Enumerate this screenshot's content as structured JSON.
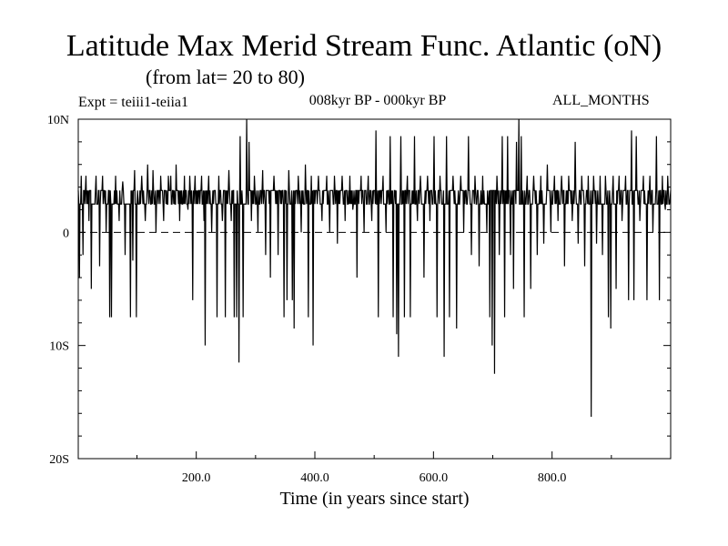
{
  "header": {
    "title": "Latitude Max Merid Stream Func. Atlantic (oN)",
    "subtitle": "(from lat= 20 to 80)",
    "expt": "Expt = teiii1-teiia1",
    "period": "008kyr BP - 000kyr BP",
    "months": "ALL_MONTHS"
  },
  "chart_data": {
    "type": "line",
    "title": "Latitude Max Merid Stream Func. Atlantic (oN)",
    "subtitle": "(from lat= 20 to 80)",
    "xlabel": "Time (in years since start)",
    "ylabel": "",
    "xlim": [
      1,
      1000
    ],
    "ylim": [
      -20,
      10
    ],
    "x_ticks": [
      200,
      400,
      600,
      800
    ],
    "x_tick_labels": [
      "200.0",
      "400.0",
      "600.0",
      "800.0"
    ],
    "y_ticks": [
      10,
      0,
      -10,
      -20
    ],
    "y_tick_labels": [
      "10N",
      "0",
      "10S",
      "20S"
    ],
    "zero_line": "dashed",
    "grid": false,
    "series": [
      {
        "color": "#000000",
        "baseline": [
          2.5,
          3.7
        ],
        "spikes": [
          {
            "x": 3,
            "y": -4
          },
          {
            "x": 6,
            "y": 5
          },
          {
            "x": 9,
            "y": -2
          },
          {
            "x": 14,
            "y": 5
          },
          {
            "x": 19,
            "y": 1
          },
          {
            "x": 23,
            "y": -5
          },
          {
            "x": 31,
            "y": 5
          },
          {
            "x": 37,
            "y": -3
          },
          {
            "x": 42,
            "y": 5
          },
          {
            "x": 48,
            "y": 0
          },
          {
            "x": 54,
            "y": -7.5
          },
          {
            "x": 57,
            "y": -7.5
          },
          {
            "x": 64,
            "y": 5
          },
          {
            "x": 70,
            "y": 1
          },
          {
            "x": 76,
            "y": 4.5
          },
          {
            "x": 80,
            "y": -2
          },
          {
            "x": 89,
            "y": -7.5
          },
          {
            "x": 93,
            "y": -2.5
          },
          {
            "x": 96,
            "y": 5.5
          },
          {
            "x": 99,
            "y": -7.5
          },
          {
            "x": 108,
            "y": 5
          },
          {
            "x": 114,
            "y": 1
          },
          {
            "x": 118,
            "y": 6
          },
          {
            "x": 127,
            "y": 5.5
          },
          {
            "x": 132,
            "y": 0
          },
          {
            "x": 140,
            "y": 5
          },
          {
            "x": 145,
            "y": 1
          },
          {
            "x": 153,
            "y": 5
          },
          {
            "x": 157,
            "y": 5
          },
          {
            "x": 166,
            "y": 6
          },
          {
            "x": 172,
            "y": 1
          },
          {
            "x": 180,
            "y": 5
          },
          {
            "x": 186,
            "y": 2
          },
          {
            "x": 189,
            "y": 5
          },
          {
            "x": 194,
            "y": -6
          },
          {
            "x": 198,
            "y": 5
          },
          {
            "x": 209,
            "y": 5
          },
          {
            "x": 213,
            "y": 1
          },
          {
            "x": 215,
            "y": -10
          },
          {
            "x": 221,
            "y": 5
          },
          {
            "x": 226,
            "y": 0
          },
          {
            "x": 235,
            "y": -7.5
          },
          {
            "x": 238,
            "y": 5
          },
          {
            "x": 244,
            "y": 1
          },
          {
            "x": 249,
            "y": -7.5
          },
          {
            "x": 255,
            "y": 5.5
          },
          {
            "x": 259,
            "y": 1
          },
          {
            "x": 264,
            "y": -7.5
          },
          {
            "x": 268,
            "y": -7.5
          },
          {
            "x": 272,
            "y": -11.5
          },
          {
            "x": 274,
            "y": 8.5
          },
          {
            "x": 279,
            "y": -7.5
          },
          {
            "x": 285,
            "y": 10
          },
          {
            "x": 289,
            "y": 8
          },
          {
            "x": 293,
            "y": 1
          },
          {
            "x": 298,
            "y": 5
          },
          {
            "x": 304,
            "y": 0
          },
          {
            "x": 312,
            "y": 5.5
          },
          {
            "x": 317,
            "y": -2
          },
          {
            "x": 325,
            "y": -4
          },
          {
            "x": 331,
            "y": 5
          },
          {
            "x": 338,
            "y": -2
          },
          {
            "x": 348,
            "y": -7.5
          },
          {
            "x": 353,
            "y": -6
          },
          {
            "x": 356,
            "y": 5.5
          },
          {
            "x": 362,
            "y": -6
          },
          {
            "x": 365,
            "y": -8.5
          },
          {
            "x": 372,
            "y": 5
          },
          {
            "x": 377,
            "y": 0
          },
          {
            "x": 384,
            "y": 6
          },
          {
            "x": 389,
            "y": -7.5
          },
          {
            "x": 394,
            "y": 5
          },
          {
            "x": 397,
            "y": -10
          },
          {
            "x": 406,
            "y": 5
          },
          {
            "x": 412,
            "y": 1
          },
          {
            "x": 420,
            "y": 5
          },
          {
            "x": 425,
            "y": 0
          },
          {
            "x": 433,
            "y": 5
          },
          {
            "x": 438,
            "y": -1
          },
          {
            "x": 446,
            "y": 5
          },
          {
            "x": 451,
            "y": 1
          },
          {
            "x": 459,
            "y": 5
          },
          {
            "x": 464,
            "y": 2
          },
          {
            "x": 471,
            "y": -4
          },
          {
            "x": 478,
            "y": 5
          },
          {
            "x": 483,
            "y": 0
          },
          {
            "x": 490,
            "y": 5
          },
          {
            "x": 496,
            "y": 1
          },
          {
            "x": 503,
            "y": 9
          },
          {
            "x": 507,
            "y": -7.5
          },
          {
            "x": 515,
            "y": 5
          },
          {
            "x": 520,
            "y": 0
          },
          {
            "x": 527,
            "y": 8.5
          },
          {
            "x": 532,
            "y": -7.5
          },
          {
            "x": 538,
            "y": -9
          },
          {
            "x": 541,
            "y": -11
          },
          {
            "x": 545,
            "y": 8.5
          },
          {
            "x": 551,
            "y": -7.5
          },
          {
            "x": 556,
            "y": 5
          },
          {
            "x": 561,
            "y": -7.5
          },
          {
            "x": 568,
            "y": 8.5
          },
          {
            "x": 573,
            "y": 1
          },
          {
            "x": 578,
            "y": 5
          },
          {
            "x": 584,
            "y": -4
          },
          {
            "x": 590,
            "y": 5
          },
          {
            "x": 594,
            "y": 1
          },
          {
            "x": 601,
            "y": 8.5
          },
          {
            "x": 606,
            "y": -7.5
          },
          {
            "x": 611,
            "y": 5
          },
          {
            "x": 618,
            "y": -11
          },
          {
            "x": 622,
            "y": 8.5
          },
          {
            "x": 627,
            "y": -7.5
          },
          {
            "x": 633,
            "y": 5
          },
          {
            "x": 639,
            "y": -8.5
          },
          {
            "x": 646,
            "y": 5
          },
          {
            "x": 651,
            "y": 0
          },
          {
            "x": 659,
            "y": 8.5
          },
          {
            "x": 664,
            "y": -2
          },
          {
            "x": 670,
            "y": 5
          },
          {
            "x": 677,
            "y": -3
          },
          {
            "x": 683,
            "y": 5
          },
          {
            "x": 690,
            "y": 0
          },
          {
            "x": 695,
            "y": -7.5
          },
          {
            "x": 699,
            "y": -10
          },
          {
            "x": 703,
            "y": -12.5
          },
          {
            "x": 707,
            "y": 5
          },
          {
            "x": 711,
            "y": -2
          },
          {
            "x": 716,
            "y": 8.5
          },
          {
            "x": 720,
            "y": -7.5
          },
          {
            "x": 725,
            "y": 8.5
          },
          {
            "x": 730,
            "y": -2
          },
          {
            "x": 735,
            "y": -5
          },
          {
            "x": 740,
            "y": 8
          },
          {
            "x": 744,
            "y": 10
          },
          {
            "x": 748,
            "y": 8.5
          },
          {
            "x": 753,
            "y": -7.5
          },
          {
            "x": 758,
            "y": 5
          },
          {
            "x": 764,
            "y": -5
          },
          {
            "x": 769,
            "y": 5
          },
          {
            "x": 775,
            "y": -2
          },
          {
            "x": 781,
            "y": 5
          },
          {
            "x": 786,
            "y": -1
          },
          {
            "x": 792,
            "y": 6
          },
          {
            "x": 798,
            "y": 0
          },
          {
            "x": 804,
            "y": 5
          },
          {
            "x": 810,
            "y": 1
          },
          {
            "x": 816,
            "y": 5
          },
          {
            "x": 821,
            "y": -3
          },
          {
            "x": 828,
            "y": 5
          },
          {
            "x": 834,
            "y": 1
          },
          {
            "x": 839,
            "y": 8
          },
          {
            "x": 844,
            "y": -1
          },
          {
            "x": 850,
            "y": 5
          },
          {
            "x": 855,
            "y": -3
          },
          {
            "x": 861,
            "y": 5
          },
          {
            "x": 866,
            "y": -16.3
          },
          {
            "x": 870,
            "y": 5
          },
          {
            "x": 875,
            "y": -1
          },
          {
            "x": 881,
            "y": 5
          },
          {
            "x": 885,
            "y": -2
          },
          {
            "x": 890,
            "y": 5
          },
          {
            "x": 895,
            "y": -7.5
          },
          {
            "x": 899,
            "y": -8.5
          },
          {
            "x": 903,
            "y": 5
          },
          {
            "x": 908,
            "y": -5
          },
          {
            "x": 913,
            "y": 5
          },
          {
            "x": 918,
            "y": 1
          },
          {
            "x": 924,
            "y": 5
          },
          {
            "x": 929,
            "y": -6
          },
          {
            "x": 934,
            "y": 9
          },
          {
            "x": 938,
            "y": -6
          },
          {
            "x": 942,
            "y": 8.5
          },
          {
            "x": 948,
            "y": 1
          },
          {
            "x": 954,
            "y": 5
          },
          {
            "x": 960,
            "y": -6
          },
          {
            "x": 965,
            "y": 5
          },
          {
            "x": 970,
            "y": 0
          },
          {
            "x": 976,
            "y": 8.5
          },
          {
            "x": 981,
            "y": -6
          },
          {
            "x": 986,
            "y": 5
          },
          {
            "x": 991,
            "y": 2
          },
          {
            "x": 995,
            "y": 5
          },
          {
            "x": 999,
            "y": 3
          }
        ]
      }
    ]
  }
}
